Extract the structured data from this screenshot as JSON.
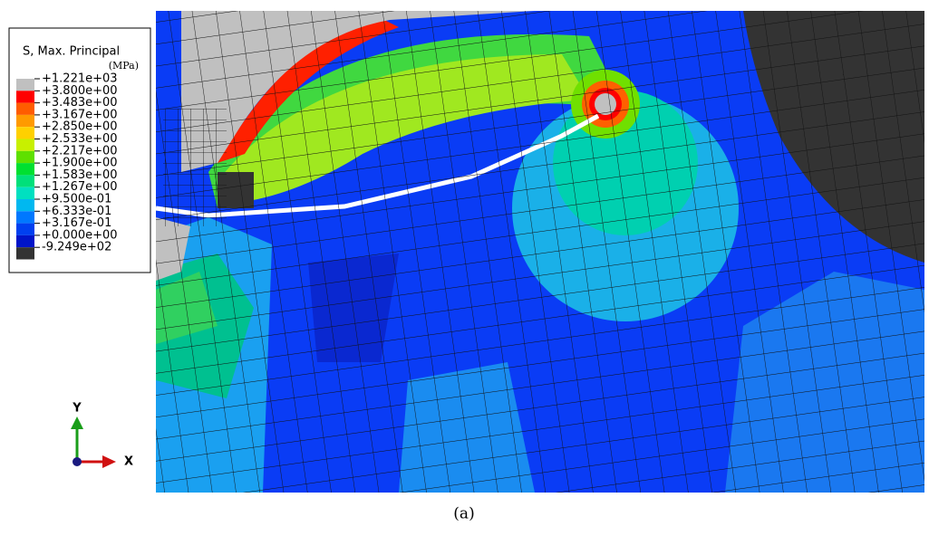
{
  "legend": {
    "title": "S, Max. Principal",
    "unit": "(MPa)",
    "labels": [
      "+1.221e+03",
      "+3.800e+00",
      "+3.483e+00",
      "+3.167e+00",
      "+2.850e+00",
      "+2.533e+00",
      "+2.217e+00",
      "+1.900e+00",
      "+1.583e+00",
      "+1.267e+00",
      "+9.500e-01",
      "+6.333e-01",
      "+3.167e-01",
      "+0.000e+00",
      "-9.249e+02"
    ],
    "colors": [
      "#c0c0c0",
      "#ff0000",
      "#ff5c00",
      "#ff9a00",
      "#ffd000",
      "#c8f000",
      "#5ee000",
      "#00e030",
      "#00e07a",
      "#00e0c0",
      "#00b8f0",
      "#0078ff",
      "#0040f0",
      "#0014c8",
      "#333333"
    ]
  },
  "triad": {
    "y": "Y",
    "x": "X"
  },
  "caption": "(a)"
}
